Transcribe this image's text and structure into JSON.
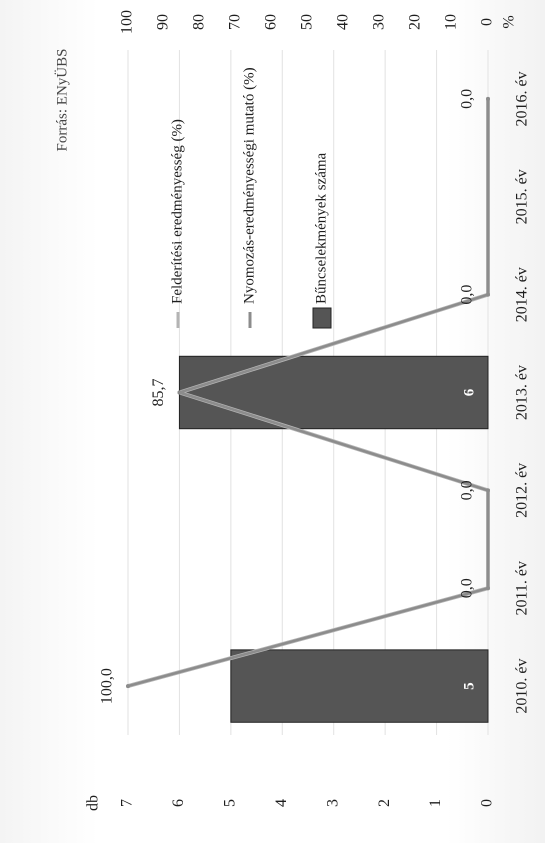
{
  "chart_data": {
    "type": "bar",
    "orientation": "rotated-90-clockwise",
    "source": "Forrás: ENyÜBS",
    "left_axis_unit": "db",
    "right_axis_unit": "%",
    "left_ylim": [
      0,
      7
    ],
    "right_ylim": [
      0,
      100
    ],
    "left_ticks": [
      0,
      1,
      2,
      3,
      4,
      5,
      6,
      7
    ],
    "right_ticks": [
      0,
      10,
      20,
      30,
      40,
      50,
      60,
      70,
      80,
      90,
      100
    ],
    "categories": [
      "2010. év",
      "2011. év",
      "2012. év",
      "2013. év",
      "2014. év",
      "2015. év",
      "2016. év"
    ],
    "series": [
      {
        "name": "Bűncselekmények száma",
        "kind": "bar",
        "axis": "left",
        "color": "#555555",
        "values": [
          5,
          null,
          null,
          6,
          null,
          null,
          null
        ]
      },
      {
        "name": "Nyomozás-eredményességi mutató (%)",
        "kind": "line",
        "axis": "right",
        "color": "#8c8c8c",
        "values": [
          100.0,
          0.0,
          0.0,
          85.7,
          0.0,
          null,
          0.0
        ]
      },
      {
        "name": "Felderítési eredményesség (%)",
        "kind": "line",
        "axis": "right",
        "color": "#b4b4b4",
        "values": [
          100.0,
          0.0,
          0.0,
          85.7,
          0.0,
          null,
          0.0
        ]
      }
    ],
    "bar_labels": [
      "5",
      "",
      "",
      "6",
      "",
      "",
      ""
    ],
    "line_labels": [
      "100,0",
      "0,0",
      "0,0",
      "85,7",
      "0,0",
      "",
      "0,0"
    ],
    "grid": true,
    "legend_position": "top"
  }
}
